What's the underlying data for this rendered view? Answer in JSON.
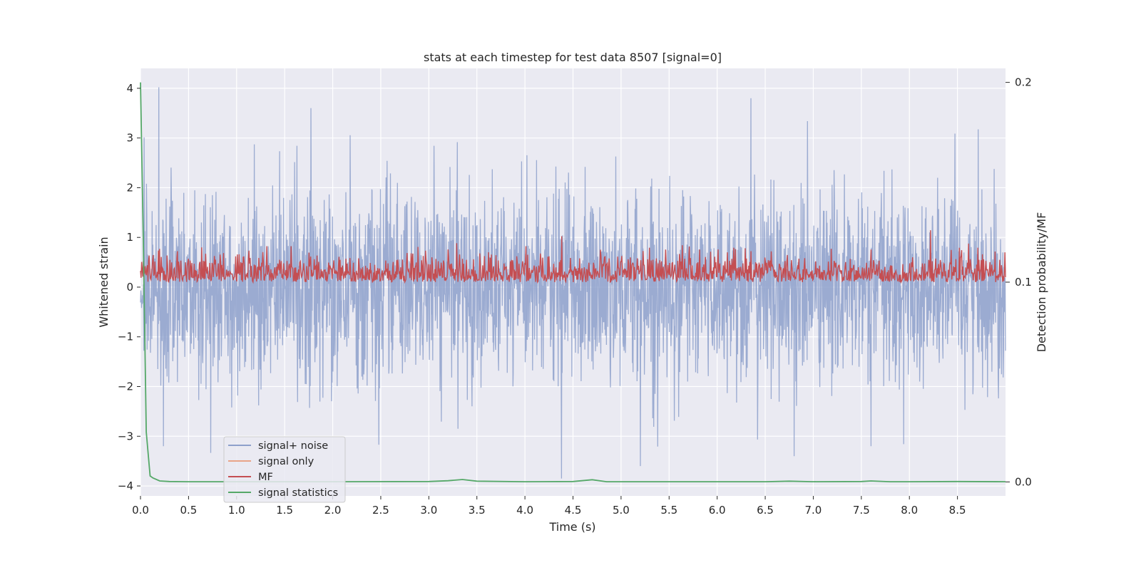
{
  "chart_data": {
    "type": "line",
    "title": "stats at each timestep for test data 8507 [signal=0]",
    "xlabel": "Time (s)",
    "ylabel": "Whitened strain",
    "y2label": "Detection probability/MF",
    "xlim": [
      0.0,
      9.0
    ],
    "ylim": [
      -4.2,
      4.4
    ],
    "y2lim": [
      -0.007,
      0.207
    ],
    "xticks": [
      "0.0",
      "0.5",
      "1.0",
      "1.5",
      "2.0",
      "2.5",
      "3.0",
      "3.5",
      "4.0",
      "4.5",
      "5.0",
      "5.5",
      "6.0",
      "6.5",
      "7.0",
      "7.5",
      "8.0",
      "8.5"
    ],
    "xtick_values": [
      0.0,
      0.5,
      1.0,
      1.5,
      2.0,
      2.5,
      3.0,
      3.5,
      4.0,
      4.5,
      5.0,
      5.5,
      6.0,
      6.5,
      7.0,
      7.5,
      8.0,
      8.5
    ],
    "yticks": [
      "4",
      "3",
      "2",
      "1",
      "0",
      "−1",
      "−2",
      "−3",
      "−4"
    ],
    "ytick_values": [
      4,
      3,
      2,
      1,
      0,
      -1,
      -2,
      -3,
      -4
    ],
    "y2ticks": [
      "0.2",
      "0.1",
      "0.0"
    ],
    "y2tick_values": [
      0.2,
      0.1,
      0.0
    ],
    "legend_position": "lower-left",
    "colors": {
      "signal_noise": "#8da0cb",
      "signal_only": "#e9a487",
      "mf": "#c44e52",
      "statistics": "#55a868",
      "background": "#eaeaf2",
      "grid": "#ffffff"
    },
    "series": [
      {
        "name": "signal+ noise",
        "key": "signal_noise",
        "axis": "left",
        "description": "dense noise approx uniform band, mostly within -2.5..2.5",
        "notable_points": [
          [
            0.19,
            4.02
          ],
          [
            0.24,
            -3.2
          ],
          [
            4.38,
            -3.85
          ],
          [
            6.35,
            3.8
          ],
          [
            5.2,
            -3.6
          ],
          [
            6.8,
            -3.4
          ],
          [
            7.6,
            -3.2
          ]
        ]
      },
      {
        "name": "signal only",
        "key": "signal_only",
        "axis": "left",
        "values": []
      },
      {
        "name": "MF",
        "key": "mf",
        "axis": "right",
        "description": "fluctuates between ~0.1 and ~0.125 on right axis",
        "notable_points": [
          [
            4.38,
            0.123
          ],
          [
            8.22,
            0.126
          ]
        ]
      },
      {
        "name": "signal statistics",
        "key": "statistics",
        "axis": "right",
        "x": [
          0.0,
          0.03,
          0.06,
          0.1,
          0.13,
          0.2,
          0.3,
          0.5,
          1.0,
          2.0,
          3.0,
          3.2,
          3.35,
          3.5,
          4.0,
          4.5,
          4.7,
          4.85,
          5.0,
          6.0,
          6.5,
          6.75,
          7.0,
          7.5,
          7.6,
          7.8,
          8.0,
          8.5,
          9.0
        ],
        "values": [
          0.2,
          0.12,
          0.025,
          0.003,
          0.002,
          0.0005,
          0.0002,
          0.0001,
          0.0001,
          0.0001,
          0.0002,
          0.0006,
          0.0012,
          0.0004,
          0.0001,
          0.0002,
          0.0011,
          0.0001,
          0.0001,
          0.0001,
          0.0001,
          0.0004,
          0.0001,
          0.0002,
          0.0005,
          0.0001,
          0.0001,
          0.0002,
          0.0001
        ]
      }
    ],
    "legend": [
      "signal+ noise",
      "signal only",
      "MF",
      "signal statistics"
    ]
  }
}
